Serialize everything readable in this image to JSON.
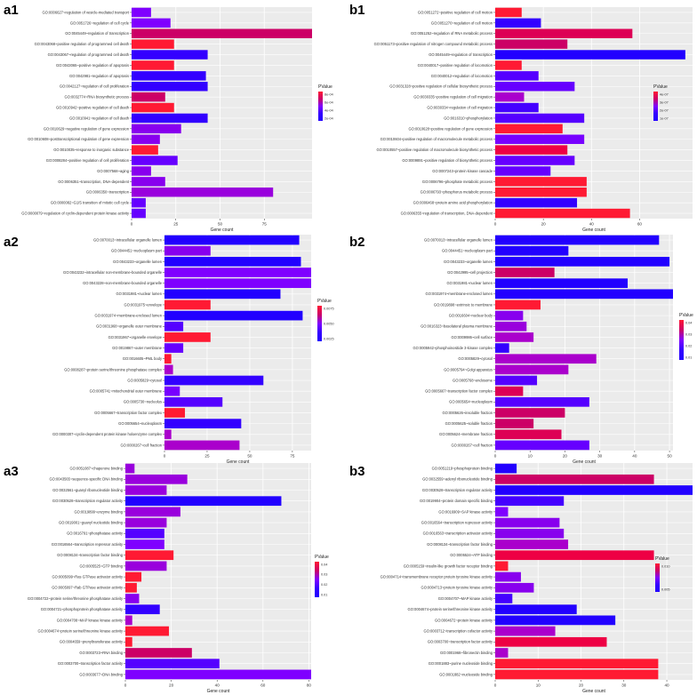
{
  "chart_data": [
    {
      "panel": "a1",
      "type": "bar",
      "orientation": "horizontal",
      "xlabel": "Gene count",
      "xticks": [
        0,
        25,
        50,
        75
      ],
      "xlim": [
        0,
        102
      ],
      "legend_title": "PValue",
      "legend_ticks": [
        "8e-04",
        "6e-04",
        "4e-04",
        "2e-04"
      ],
      "categories": [
        "GO:0006627~regulation of vesicle-mediated transport",
        "GO:0051726~regulation of cell cycle",
        "GO:0045449~regulation of transcription",
        "GO:0043068~positive regulation of programmed cell death",
        "GO:0043067~regulation of programmed cell death",
        "GO:0043065~positive regulation of apoptosis",
        "GO:0042981~regulation of apoptosis",
        "GO:0042127~regulation of cell proliferation",
        "GO:0032774~RNA biosynthetic process",
        "GO:0010942~positive regulation of cell death",
        "GO:0010941~regulation of cell death",
        "GO:0010629~negative regulation of gene expression",
        "GO:0010608~posttranscriptional regulation of gene expression",
        "GO:0010035~response to inorganic substance",
        "GO:0008284~positive regulation of cell proliferation",
        "GO:0007568~aging",
        "GO:0006351~transcription, DNA-dependent",
        "GO:0006350~transcription",
        "GO:0000082~G1/S transition of mitotic cell cycle",
        "GO:0000079~regulation of cyclin-dependent protein kinase activity"
      ],
      "values": [
        11,
        22,
        102,
        24,
        43,
        24,
        42,
        43,
        19,
        24,
        43,
        28,
        16,
        15,
        26,
        11,
        19,
        80,
        8,
        8
      ],
      "colors": [
        "#7f00ff",
        "#7f00ff",
        "#cc0066",
        "#ff1a33",
        "#3300ff",
        "#ff1a33",
        "#3300ff",
        "#3300ff",
        "#cc0066",
        "#ff1a33",
        "#3300ff",
        "#8800ee",
        "#8800ee",
        "#ff1a33",
        "#6600ff",
        "#8800ee",
        "#8800ee",
        "#9900dd",
        "#6600ff",
        "#6600ff"
      ]
    },
    {
      "panel": "b1",
      "type": "bar",
      "orientation": "horizontal",
      "xlabel": "Gene count",
      "xticks": [
        0,
        20,
        40,
        60
      ],
      "xlim": [
        0,
        82
      ],
      "legend_title": "PValue",
      "legend_ticks": [
        "4e-07",
        "3e-07",
        "2e-07",
        "1e-07"
      ],
      "categories": [
        "GO:0051272~positive regulation of cell motion",
        "GO:0051270~regulation of cell motion",
        "GO:0051252~regulation of RNA metabolic process",
        "GO:0051173~positive regulation of nitrogen compound metabolic process",
        "GO:0045449~regulation of transcription",
        "GO:0040017~positive regulation of locomotion",
        "GO:0040012~regulation of locomotion",
        "GO:0031328~positive regulation of cellular biosynthetic process",
        "GO:0030335~positive regulation of cell migration",
        "GO:0030334~regulation of cell migration",
        "GO:0016310~phosphorylation",
        "GO:0010628~positive regulation of gene expression",
        "GO:0010604~positive regulation of macromolecule metabolic process",
        "GO:0010557~positive regulation of macromolecule biosynthetic process",
        "GO:0009891~positive regulation of biosynthetic process",
        "GO:0007243~protein kinase cascade",
        "GO:0006796~phosphate metabolic process",
        "GO:0006793~phosphorus metabolic process",
        "GO:0006468~protein amino acid phosphorylation",
        "GO:0006355~regulation of transcription, DNA-dependent"
      ],
      "values": [
        11,
        19,
        57,
        30,
        79,
        11,
        18,
        33,
        12,
        18,
        37,
        28,
        37,
        30,
        33,
        23,
        38,
        38,
        34,
        56
      ],
      "colors": [
        "#ff1a33",
        "#3300ff",
        "#dd0055",
        "#cc0066",
        "#2200ff",
        "#ff1a33",
        "#5500ff",
        "#6600ff",
        "#aa00cc",
        "#4400ff",
        "#5500ff",
        "#ff1a33",
        "#7700ff",
        "#ee0044",
        "#6600ff",
        "#6600ff",
        "#ff1a33",
        "#ff1a33",
        "#3300ff",
        "#ff1a33"
      ]
    },
    {
      "panel": "a2",
      "type": "bar",
      "orientation": "horizontal",
      "xlabel": "Gene count",
      "xticks": [
        0,
        25,
        50,
        75
      ],
      "xlim": [
        0,
        86
      ],
      "legend_title": "PValue",
      "legend_ticks": [
        "0.0075",
        "0.0050",
        "0.0025"
      ],
      "categories": [
        "GO:0070013~intracellular organelle lumen",
        "GO:0044451~nucleoplasm part",
        "GO:0043233~organelle lumen",
        "GO:0043232~intracellular non-membrane-bounded organelle",
        "GO:0043228~non-membrane-bounded organelle",
        "GO:0031981~nuclear lumen",
        "GO:0031975~envelope",
        "GO:0031974~membrane-enclosed lumen",
        "GO:0031968~organelle outer membrane",
        "GO:0031967~organelle envelope",
        "GO:0019867~outer membrane",
        "GO:0016605~PML body",
        "GO:0008287~protein serine/threonine phosphatase complex",
        "GO:0005829~cytosol",
        "GO:0005741~mitochondrial outer membrane",
        "GO:0005730~nucleolus",
        "GO:0005667~transcription factor complex",
        "GO:0005654~nucleoplasm",
        "GO:0000307~cyclin-dependent protein kinase holoenzyme complex",
        "GO:0000267~cell fraction"
      ],
      "values": [
        79,
        27,
        80,
        86,
        86,
        68,
        27,
        81,
        11,
        27,
        11,
        4,
        5,
        58,
        9,
        34,
        12,
        45,
        4,
        44
      ],
      "colors": [
        "#2200ff",
        "#8800ee",
        "#2200ff",
        "#7f00ff",
        "#7f00ff",
        "#2200ff",
        "#ff1a33",
        "#2200ff",
        "#5500ff",
        "#ff1a33",
        "#6600ff",
        "#ff1a33",
        "#aa00cc",
        "#3300ff",
        "#7700ff",
        "#5500ff",
        "#ff1a33",
        "#3300ff",
        "#aa00cc",
        "#aa00cc"
      ]
    },
    {
      "panel": "b2",
      "type": "bar",
      "orientation": "horizontal",
      "xlabel": "Gene count",
      "xticks": [
        0,
        10,
        20,
        30,
        40,
        50
      ],
      "xlim": [
        0,
        51
      ],
      "legend_title": "PValue",
      "legend_ticks": [
        "0.04",
        "0.03",
        "0.02",
        "0.01"
      ],
      "categories": [
        "GO:0070013~intracellular organelle lumen",
        "GO:0044451~nucleoplasm part",
        "GO:0043233~organelle lumen",
        "GO:0042995~cell projection",
        "GO:0031981~nuclear lumen",
        "GO:0031974~membrane-enclosed lumen",
        "GO:0019898~extrinsic to membrane",
        "GO:0016604~nuclear body",
        "GO:0016323~basolateral plasma membrane",
        "GO:0009986~cell surface",
        "GO:0005942~phosphoinositide 3-kinase complex",
        "GO:0005829~cytosol",
        "GO:0005794~Golgi apparatus",
        "GO:0005768~endosome",
        "GO:0005667~transcription factor complex",
        "GO:0005654~nucleoplasm",
        "GO:0005626~insoluble fraction",
        "GO:0005625~soluble fraction",
        "GO:0005624~membrane fraction",
        "GO:0000267~cell fraction"
      ],
      "values": [
        47,
        21,
        50,
        17,
        38,
        51,
        13,
        8,
        9,
        11,
        4,
        29,
        21,
        12,
        8,
        27,
        20,
        11,
        19,
        27
      ],
      "colors": [
        "#2200ff",
        "#2200ff",
        "#2200ff",
        "#cc0066",
        "#2200ff",
        "#2200ff",
        "#ff1a33",
        "#8800ee",
        "#9900dd",
        "#aa00cc",
        "#3300ff",
        "#aa00cc",
        "#aa00cc",
        "#5500ff",
        "#dd0055",
        "#5500ff",
        "#cc0066",
        "#cc0066",
        "#dd0055",
        "#6600ff"
      ]
    },
    {
      "panel": "a3",
      "type": "bar",
      "orientation": "horizontal",
      "xlabel": "Gene count",
      "xticks": [
        0,
        20,
        40,
        60,
        80
      ],
      "xlim": [
        0,
        81
      ],
      "legend_title": "PValue",
      "legend_ticks": [
        "0.04",
        "0.03",
        "0.02",
        "0.01"
      ],
      "categories": [
        "GO:0051087~chaperone binding",
        "GO:0043565~sequence-specific DNA binding",
        "GO:0032561~guanyl ribonucleotide binding",
        "GO:0030528~transcription regulator activity",
        "GO:0019899~enzyme binding",
        "GO:0019001~guanyl nucleotide binding",
        "GO:0016791~phosphatase activity",
        "GO:0016564~transcription repressor activity",
        "GO:0008134~transcription factor binding",
        "GO:0005525~GTP binding",
        "GO:0005099~Ras GTPase activator activity",
        "GO:0005097~Rab GTPase activator activity",
        "GO:0004722~protein serine/threonine phosphatase activity",
        "GO:0004721~phosphoprotein phosphatase activity",
        "GO:0004708~MAP kinase kinase activity",
        "GO:0004674~protein serine/threonine kinase activity",
        "GO:0004659~prenyltransferase activity",
        "GO:0003723~RNA binding",
        "GO:0003700~transcription factor activity",
        "GO:0003677~DNA binding"
      ],
      "values": [
        4,
        27,
        18,
        68,
        24,
        18,
        17,
        17,
        21,
        18,
        7,
        5,
        6,
        15,
        3,
        19,
        3,
        29,
        41,
        81
      ],
      "colors": [
        "#9900dd",
        "#9900dd",
        "#9900dd",
        "#2200ff",
        "#9900dd",
        "#9900dd",
        "#5500ff",
        "#7f00ff",
        "#ff1a33",
        "#9900dd",
        "#ff1a33",
        "#ff1a33",
        "#8800ee",
        "#3300ff",
        "#aa00cc",
        "#ff1a33",
        "#ff1a33",
        "#cc0066",
        "#5500ff",
        "#7f00ff"
      ]
    },
    {
      "panel": "b3",
      "type": "bar",
      "orientation": "horizontal",
      "xlabel": "Gene count",
      "xticks": [
        0,
        10,
        20,
        30,
        40
      ],
      "xlim": [
        0,
        46
      ],
      "legend_title": "PValue",
      "legend_ticks": [
        "0.010",
        "0.005"
      ],
      "categories": [
        "GO:0051219~phosphoprotein binding",
        "GO:0032559~adenyl ribonucleotide binding",
        "GO:0030528~transcription regulator activity",
        "GO:0019904~protein domain specific binding",
        "GO:0016909~SAP kinase activity",
        "GO:0016564~transcription repressor activity",
        "GO:0016563~transcription activator activity",
        "GO:0008134~transcription factor binding",
        "GO:0005524~ATP binding",
        "GO:0005159~insulin-like growth factor receptor binding",
        "GO:0004714~transmembrane receptor protein tyrosine kinase activity",
        "GO:0004713~protein tyrosine kinase activity",
        "GO:0004707~MAP kinase activity",
        "GO:0004674~protein serine/threonine kinase activity",
        "GO:0004672~protein kinase activity",
        "GO:0003712~transcription cofactor activity",
        "GO:0003700~transcription factor activity",
        "GO:0001968~fibronectin binding",
        "GO:0001883~purine nucleoside binding",
        "GO:0001882~nucleoside binding"
      ],
      "values": [
        5,
        37,
        46,
        16,
        3,
        15,
        16,
        17,
        37,
        3,
        6,
        9,
        4,
        19,
        28,
        14,
        26,
        3,
        38,
        38
      ],
      "colors": [
        "#2200ff",
        "#cc0066",
        "#2200ff",
        "#4400ff",
        "#7f00ff",
        "#8800ee",
        "#8800ee",
        "#aa00cc",
        "#ee0044",
        "#ff1a33",
        "#8800ee",
        "#8800ee",
        "#4400ff",
        "#2200ff",
        "#2200ff",
        "#aa00cc",
        "#ee0044",
        "#aa00cc",
        "#ff1a33",
        "#ff1a33"
      ]
    }
  ]
}
